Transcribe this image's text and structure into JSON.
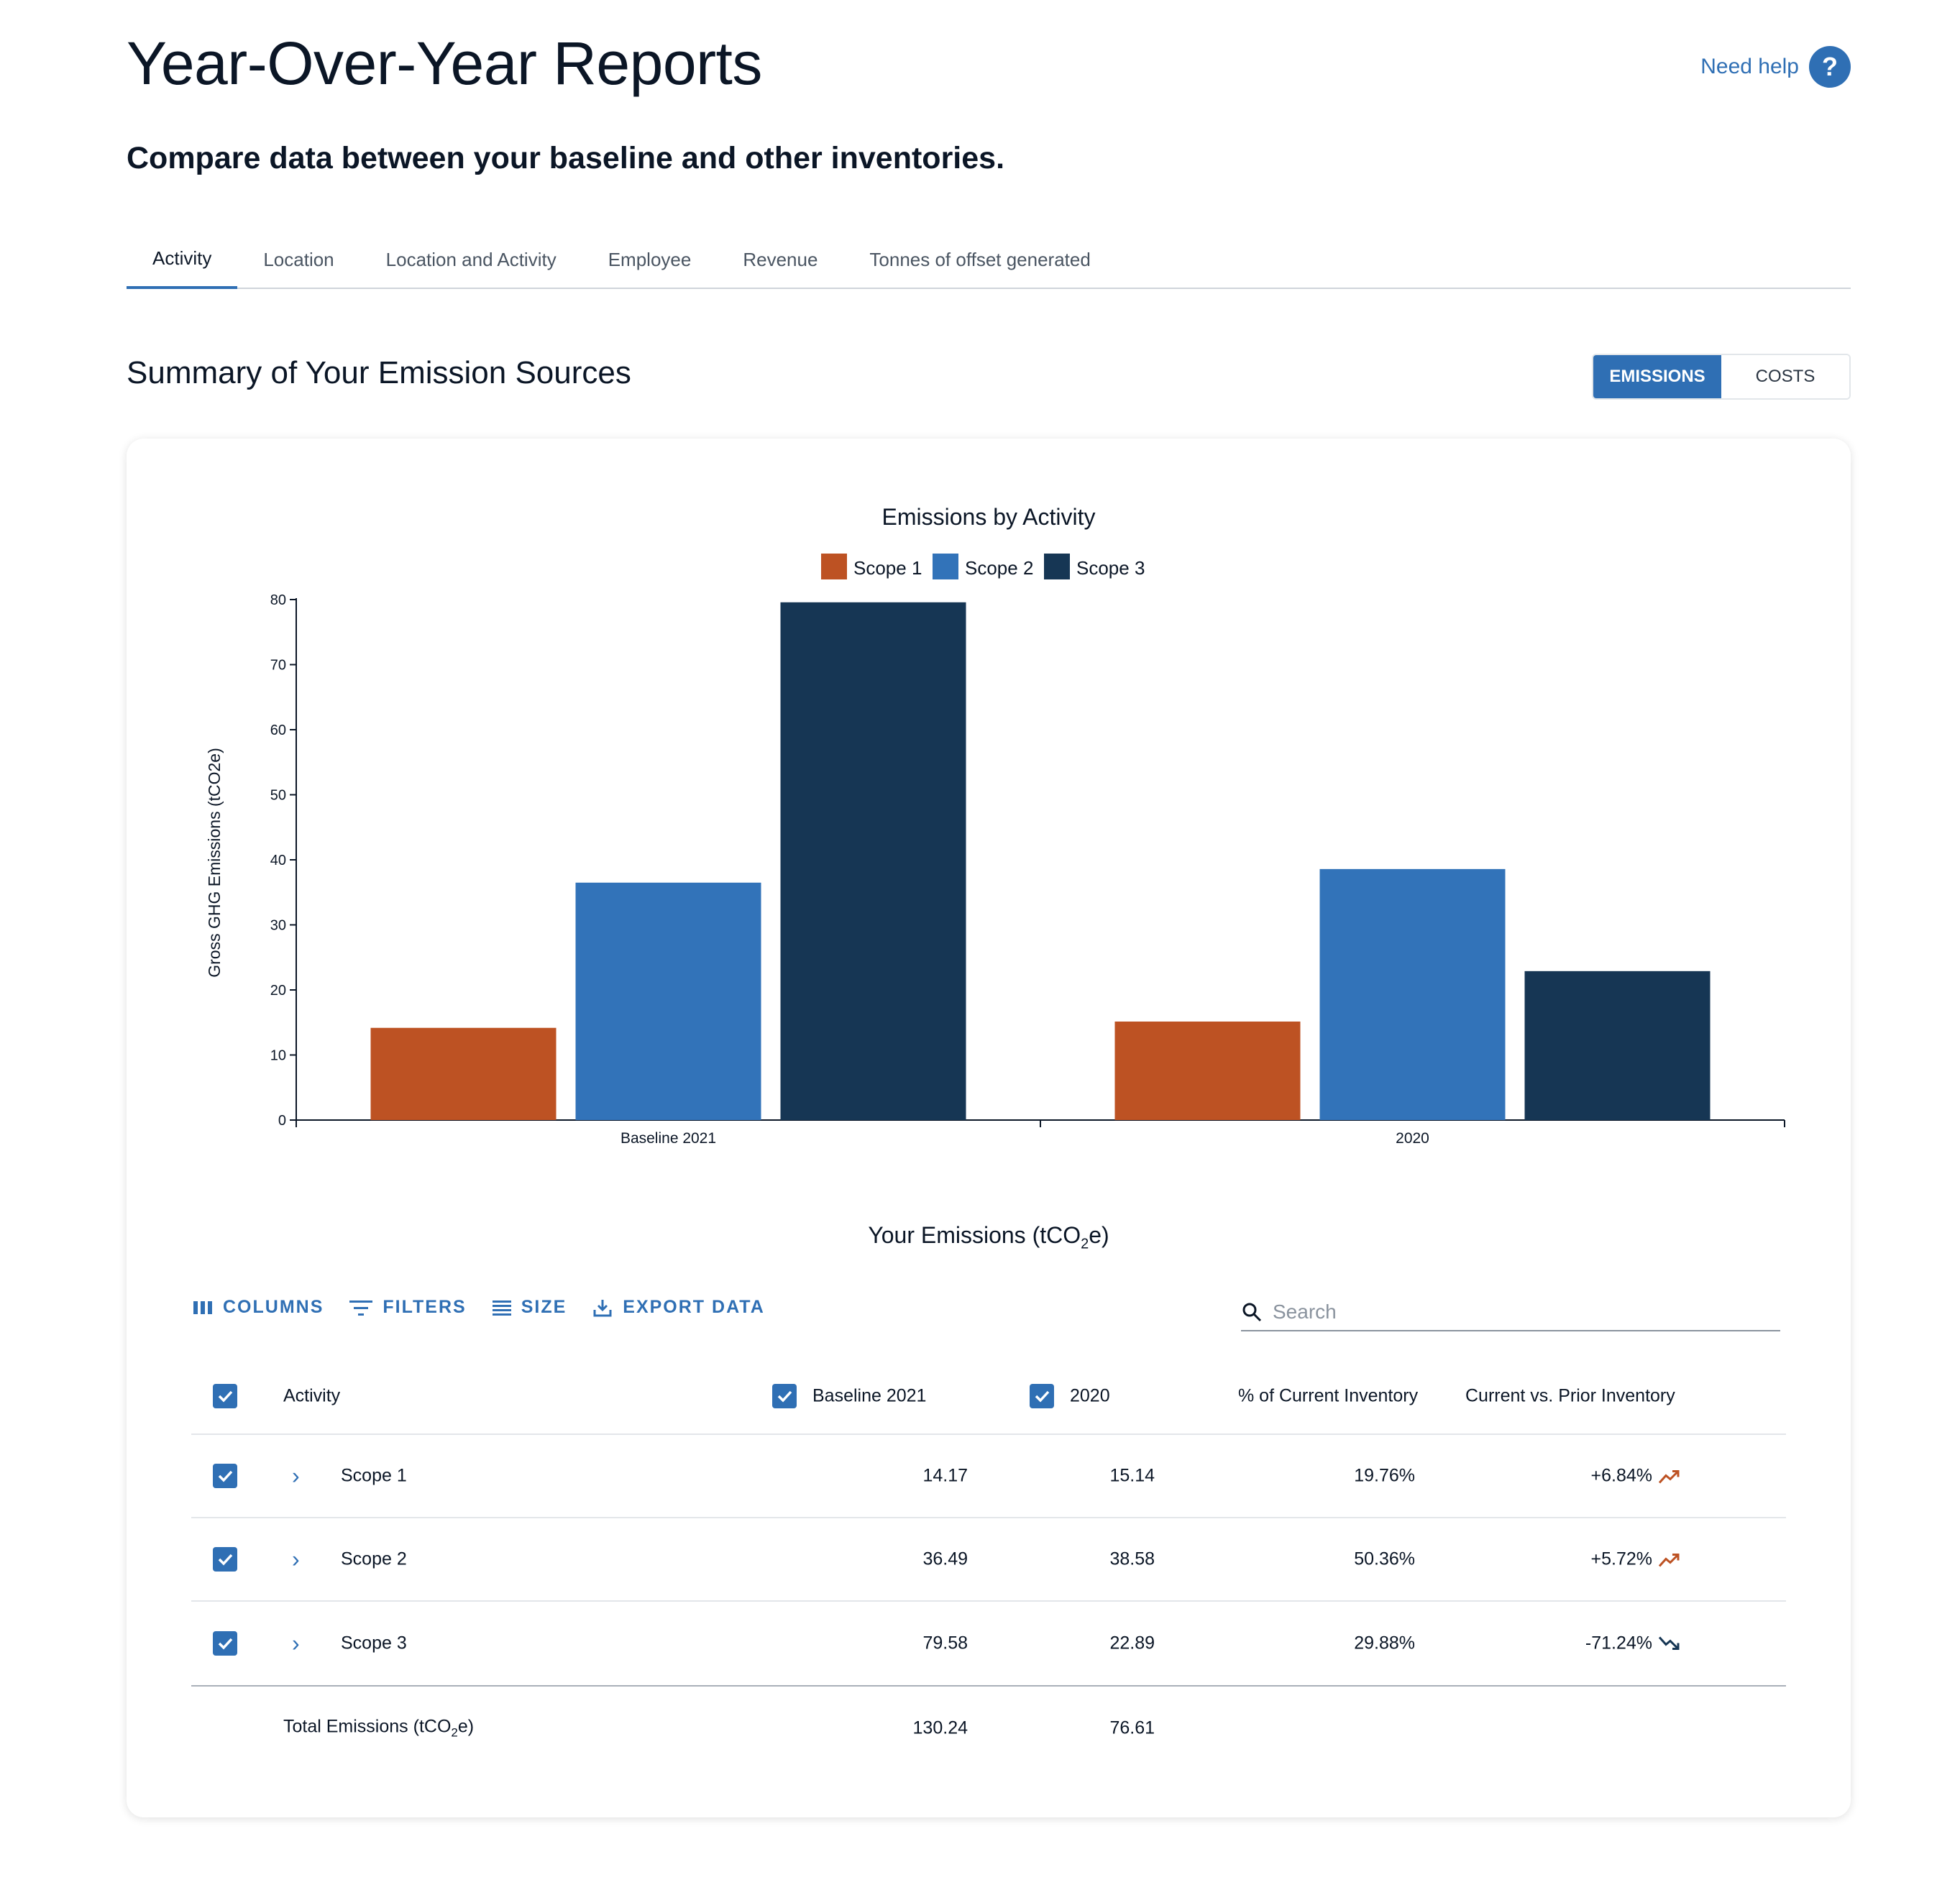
{
  "header": {
    "title": "Year-Over-Year Reports",
    "help_label": "Need help",
    "help_icon": "?",
    "subtitle": "Compare data between your baseline and other inventories."
  },
  "tabs": [
    {
      "label": "Activity",
      "active": true
    },
    {
      "label": "Location"
    },
    {
      "label": "Location and Activity"
    },
    {
      "label": "Employee"
    },
    {
      "label": "Revenue"
    },
    {
      "label": "Tonnes of offset generated"
    }
  ],
  "section": {
    "title": "Summary of Your Emission Sources",
    "toggle": {
      "emissions": "EMISSIONS",
      "costs": "COSTS",
      "selected": "EMISSIONS"
    }
  },
  "chart_data": {
    "type": "bar",
    "title": "Emissions by Activity",
    "xlabel": "",
    "ylabel": "Gross GHG Emissions (tCO2e)",
    "categories": [
      "Baseline 2021",
      "2020"
    ],
    "series": [
      {
        "name": "Scope 1",
        "color": "#bd5223",
        "values": [
          14.17,
          15.14
        ]
      },
      {
        "name": "Scope 2",
        "color": "#3273b9",
        "values": [
          36.49,
          38.58
        ]
      },
      {
        "name": "Scope 3",
        "color": "#163654",
        "values": [
          79.58,
          22.89
        ]
      }
    ],
    "ylim": [
      0,
      80
    ],
    "yticks": [
      0,
      10,
      20,
      30,
      40,
      50,
      60,
      70,
      80
    ],
    "legend": "top-center",
    "grid": false
  },
  "table": {
    "title_pre": "Your Emissions (tCO",
    "title_sub": "2",
    "title_post": "e)",
    "toolbar": {
      "columns": "COLUMNS",
      "filters": "FILTERS",
      "size": "SIZE",
      "export": "EXPORT DATA"
    },
    "search_placeholder": "Search",
    "headers": {
      "activity": "Activity",
      "baseline": "Baseline 2021",
      "y2020": "2020",
      "pct": "% of Current Inventory",
      "change": "Current vs. Prior Inventory"
    },
    "rows": [
      {
        "activity": "Scope 1",
        "baseline": "14.17",
        "y2020": "15.14",
        "pct": "19.76%",
        "change": "+6.84%",
        "trend": "up"
      },
      {
        "activity": "Scope 2",
        "baseline": "36.49",
        "y2020": "38.58",
        "pct": "50.36%",
        "change": "+5.72%",
        "trend": "up"
      },
      {
        "activity": "Scope 3",
        "baseline": "79.58",
        "y2020": "22.89",
        "pct": "29.88%",
        "change": "-71.24%",
        "trend": "down"
      }
    ],
    "total": {
      "label_pre": "Total Emissions (tCO",
      "label_sub": "2",
      "label_post": "e)",
      "baseline": "130.24",
      "y2020": "76.61"
    }
  },
  "colors": {
    "accent": "#2f6fb4",
    "trend_up": "#bd5223",
    "trend_down": "#163654"
  }
}
